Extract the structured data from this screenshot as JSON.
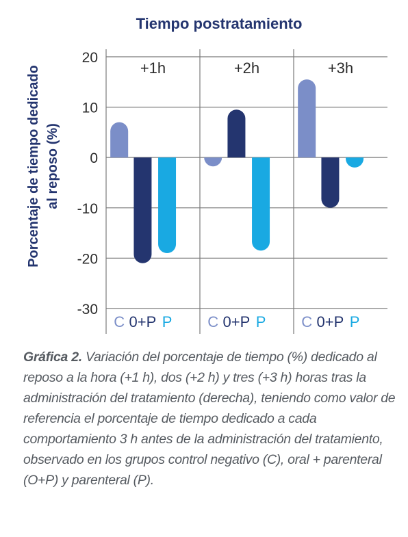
{
  "chart_data": {
    "type": "bar",
    "title": "Tiempo postratamiento",
    "ylabel": "Porcentaje de tiempo dedicado al reposo (%)",
    "ylabel_lines": [
      "Porcentaje de tiempo dedicado",
      "al reposo (%)"
    ],
    "xlabel": "",
    "ylim": [
      -30,
      20
    ],
    "yticks": [
      20,
      10,
      0,
      -10,
      -20,
      -30
    ],
    "panels": [
      "+1h",
      "+2h",
      "+3h"
    ],
    "categories": [
      "C",
      "0+P",
      "P"
    ],
    "series": [
      {
        "name": "C",
        "color": "#7b8ec8",
        "values": [
          7,
          -1,
          15.5
        ]
      },
      {
        "name": "0+P",
        "color": "#24356f",
        "values": [
          -21,
          9.5,
          -10
        ]
      },
      {
        "name": "P",
        "color": "#19a9e2",
        "values": [
          -19,
          -18.5,
          -2
        ]
      }
    ],
    "grid": true,
    "legend": "none"
  },
  "caption": {
    "label": "Gráfica 2.",
    "text": "Variación del porcentaje de tiempo (%) dedicado al reposo a la hora (+1 h), dos (+2 h) y tres (+3 h) horas tras la administración del tratamiento (derecha), teniendo como valor de referencia el porcentaje de tiempo dedicado a cada comportamiento 3 h antes de la administración del tratamiento, observado en los grupos control negativo (C), oral + parenteral (O+P) y parenteral (P)."
  },
  "colors": {
    "title": "#24356f",
    "axis_text": "#2b2b2b",
    "grid": "#7a7a7a"
  }
}
